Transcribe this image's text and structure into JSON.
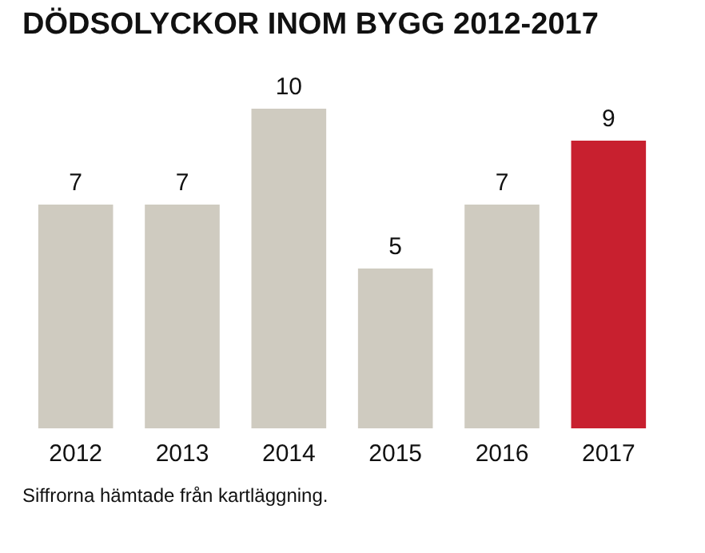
{
  "chart_data": {
    "type": "bar",
    "title": "DÖDSOLYCKOR INOM BYGG 2012-2017",
    "categories": [
      "2012",
      "2013",
      "2014",
      "2015",
      "2016",
      "2017"
    ],
    "values": [
      7,
      7,
      10,
      5,
      7,
      9
    ],
    "colors": [
      "#cfcbc0",
      "#cfcbc0",
      "#cfcbc0",
      "#cfcbc0",
      "#cfcbc0",
      "#c8202f"
    ],
    "data_labels": true,
    "annotations": [
      "Siffrorna hämtade från kartläggning."
    ]
  }
}
